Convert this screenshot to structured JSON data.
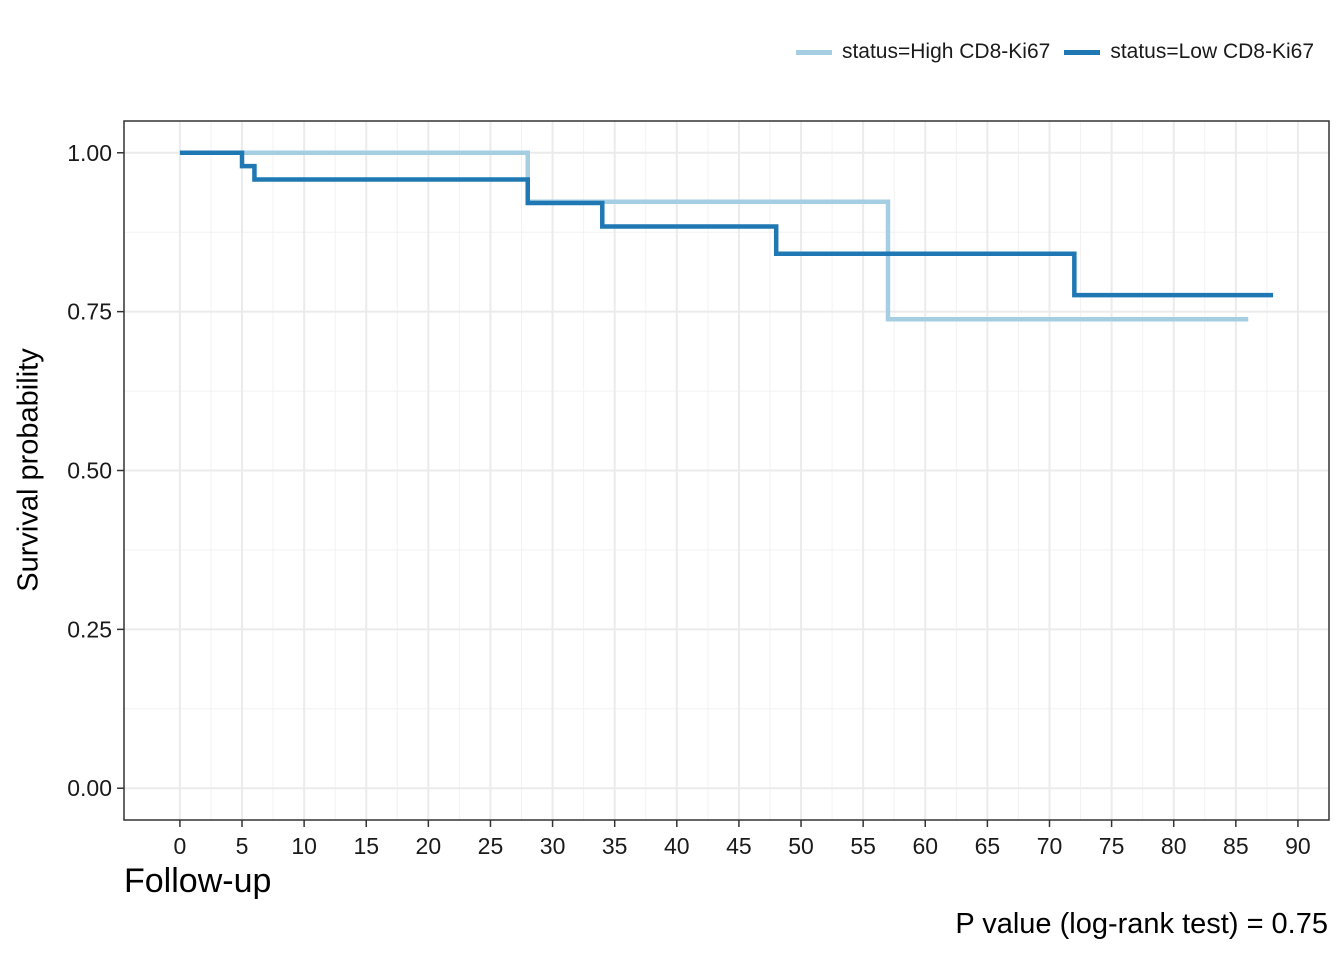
{
  "chart_data": {
    "type": "line",
    "subtype": "kaplan-meier step",
    "title": "",
    "xlabel": "Follow-up",
    "ylabel": "Survival probability",
    "xlim": [
      -4.5,
      92.5
    ],
    "ylim": [
      -0.05,
      1.05
    ],
    "xticks": [
      "0",
      "5",
      "10",
      "15",
      "20",
      "25",
      "30",
      "35",
      "40",
      "45",
      "50",
      "55",
      "60",
      "65",
      "70",
      "75",
      "80",
      "85",
      "90"
    ],
    "xtick_values": [
      0,
      5,
      10,
      15,
      20,
      25,
      30,
      35,
      40,
      45,
      50,
      55,
      60,
      65,
      70,
      75,
      80,
      85,
      90
    ],
    "yticks": [
      "0.00",
      "0.25",
      "0.50",
      "0.75",
      "1.00"
    ],
    "ytick_values": [
      0,
      0.25,
      0.5,
      0.75,
      1.0
    ],
    "grid": true,
    "legend_position": "top-right",
    "annotation": "P value (log-rank test) = 0.75",
    "series": [
      {
        "name": "status=High CD8-Ki67",
        "color": "#a6cee3",
        "steps": [
          {
            "x": 0,
            "y": 1.0
          },
          {
            "x": 28,
            "y": 0.923
          },
          {
            "x": 57,
            "y": 0.738
          },
          {
            "x": 86,
            "y": 0.738
          }
        ]
      },
      {
        "name": "status=Low CD8-Ki67",
        "color": "#1f78b4",
        "steps": [
          {
            "x": 0,
            "y": 1.0
          },
          {
            "x": 5,
            "y": 0.979
          },
          {
            "x": 6,
            "y": 0.958
          },
          {
            "x": 28,
            "y": 0.921
          },
          {
            "x": 34,
            "y": 0.884
          },
          {
            "x": 48,
            "y": 0.841
          },
          {
            "x": 72,
            "y": 0.776
          },
          {
            "x": 88,
            "y": 0.776
          }
        ]
      }
    ]
  }
}
